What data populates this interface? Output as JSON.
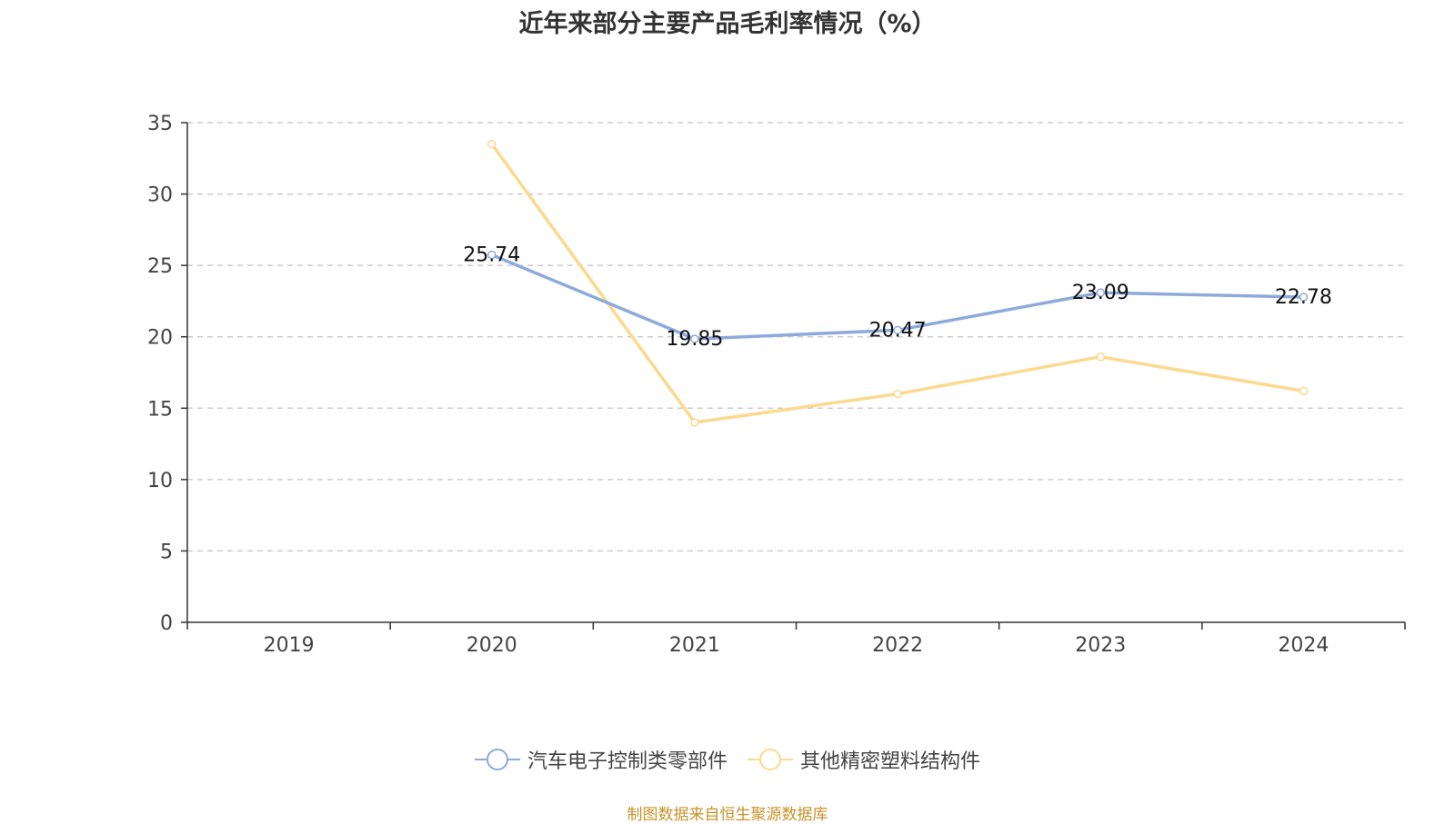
{
  "chart_data": {
    "type": "line",
    "title": "近年来部分主要产品毛利率情况（%）",
    "categories": [
      "2019",
      "2020",
      "2021",
      "2022",
      "2023",
      "2024"
    ],
    "ylim": [
      0,
      35
    ],
    "yticks": [
      "0",
      "5",
      "10",
      "15",
      "20",
      "25",
      "30",
      "35"
    ],
    "grid": true,
    "legend_position": "bottom",
    "series": [
      {
        "name": "汽车电子控制类零部件",
        "color": "#8eaadb",
        "values": [
          null,
          25.74,
          19.85,
          20.47,
          23.09,
          22.78
        ],
        "labels": [
          "",
          "25.74",
          "19.85",
          "20.47",
          "23.09",
          "22.78"
        ]
      },
      {
        "name": "其他精密塑料结构件",
        "color": "#fbd98f",
        "values": [
          null,
          33.5,
          14.0,
          16.0,
          18.6,
          16.2
        ]
      }
    ]
  },
  "source": "制图数据来自恒生聚源数据库"
}
